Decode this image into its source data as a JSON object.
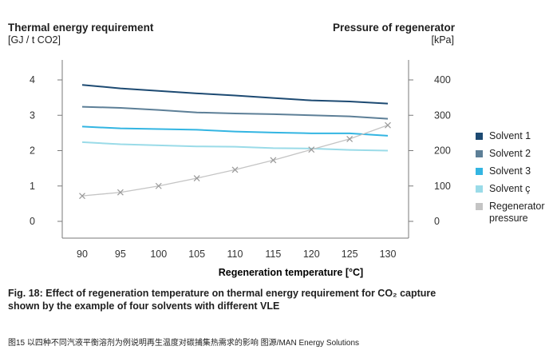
{
  "chart_data": {
    "type": "line",
    "left_axis_title": "Thermal energy requirement",
    "left_axis_unit": "[GJ / t CO2]",
    "right_axis_title": "Pressure of regenerator",
    "right_axis_unit": "[kPa]",
    "xlabel": "Regeneration temperature [°C]",
    "x": [
      90,
      95,
      100,
      105,
      110,
      115,
      120,
      125,
      130
    ],
    "x_ticks": [
      "90",
      "95",
      "100",
      "105",
      "110",
      "115",
      "120",
      "125",
      "130"
    ],
    "y_left_ticks": [
      "0",
      "1",
      "2",
      "3",
      "4"
    ],
    "y_right_ticks": [
      "0",
      "100",
      "200",
      "300",
      "400"
    ],
    "ylim_left": [
      0,
      4.3
    ],
    "ylim_right": [
      0,
      430
    ],
    "legend_position": "right",
    "series": [
      {
        "name": "Solvent 1",
        "axis": "left",
        "color": "#1d4a72",
        "values": [
          3.86,
          3.76,
          3.69,
          3.62,
          3.56,
          3.49,
          3.42,
          3.39,
          3.33
        ]
      },
      {
        "name": "Solvent 2",
        "axis": "left",
        "color": "#5d7f97",
        "values": [
          3.24,
          3.21,
          3.15,
          3.08,
          3.05,
          3.03,
          3.0,
          2.97,
          2.9
        ]
      },
      {
        "name": "Solvent 3",
        "axis": "left",
        "color": "#33b5e2",
        "values": [
          2.68,
          2.63,
          2.61,
          2.59,
          2.54,
          2.51,
          2.49,
          2.49,
          2.42
        ]
      },
      {
        "name": "Solvent ç",
        "axis": "left",
        "color": "#9adbe8",
        "values": [
          2.24,
          2.18,
          2.15,
          2.12,
          2.11,
          2.07,
          2.06,
          2.02,
          2.0
        ]
      },
      {
        "name": "Regenerator\npressure",
        "axis": "right",
        "color": "#c4c4c4",
        "marker": "x",
        "values": [
          72,
          82,
          100,
          122,
          146,
          173,
          203,
          233,
          272
        ]
      }
    ]
  },
  "caption": {
    "line1": "Fig. 18: Effect of regeneration temperature on thermal energy requirement for CO₂ capture",
    "line2": "shown by the example of four solvents with different VLE"
  },
  "source_note": "图15 以四种不同汽液平衡溶剂为例说明再生温度对碳捕集热需求的影响 图源/MAN Energy Solutions"
}
